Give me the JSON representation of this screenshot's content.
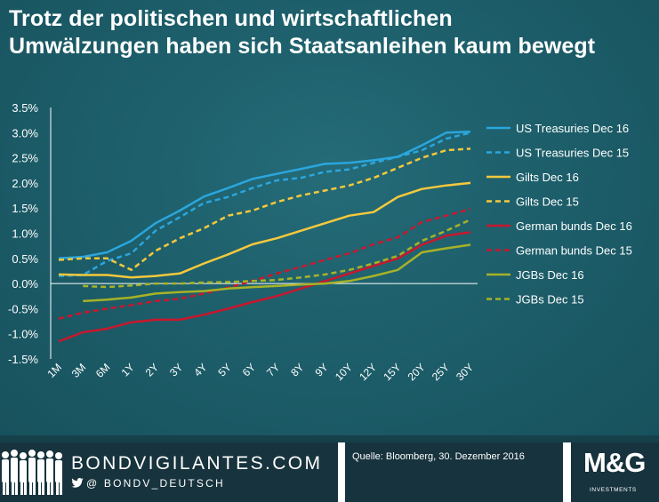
{
  "title_line1": "Trotz der politischen und wirtschaftlichen",
  "title_line2": "Umwälzungen haben sich Staatsanleihen kaum bewegt",
  "chart_data": {
    "type": "line",
    "title": "Trotz der politischen und wirtschaftlichen Umwälzungen haben sich Staatsanleihen kaum bewegt",
    "xlabel": "",
    "ylabel": "",
    "ylim": [
      -1.5,
      3.5
    ],
    "yticks": [
      "3.5%",
      "3.0%",
      "2.5%",
      "2.0%",
      "1.5%",
      "1.0%",
      "0.5%",
      "0.0%",
      "-0.5%",
      "-1.0%",
      "-1.5%"
    ],
    "ytick_values": [
      3.5,
      3.0,
      2.5,
      2.0,
      1.5,
      1.0,
      0.5,
      0.0,
      -0.5,
      -1.0,
      -1.5
    ],
    "categories": [
      "1M",
      "3M",
      "6M",
      "1Y",
      "2Y",
      "3Y",
      "4Y",
      "5Y",
      "6Y",
      "7Y",
      "8Y",
      "9Y",
      "10Y",
      "12Y",
      "15Y",
      "20Y",
      "25Y",
      "30Y"
    ],
    "legend_position": "right",
    "series": [
      {
        "name": "US Treasuries Dec 16",
        "color": "#2aa6de",
        "style": "solid",
        "values": [
          0.5,
          0.53,
          0.62,
          0.85,
          1.2,
          1.45,
          1.73,
          1.9,
          2.08,
          2.18,
          2.28,
          2.38,
          2.4,
          2.45,
          2.52,
          2.75,
          3.0,
          3.02
        ]
      },
      {
        "name": "US Treasuries Dec 15",
        "color": "#2aa6de",
        "style": "dashed",
        "values": [
          0.15,
          0.17,
          0.45,
          0.6,
          1.05,
          1.32,
          1.6,
          1.72,
          1.9,
          2.05,
          2.1,
          2.22,
          2.27,
          2.4,
          2.52,
          2.65,
          2.88,
          3.0
        ]
      },
      {
        "name": "Gilts Dec 16",
        "color": "#f5c83c",
        "style": "solid",
        "values": [
          0.18,
          0.17,
          0.17,
          0.12,
          0.15,
          0.2,
          0.4,
          0.58,
          0.78,
          0.9,
          1.05,
          1.2,
          1.35,
          1.42,
          1.72,
          1.88,
          1.95,
          2.0
        ]
      },
      {
        "name": "Gilts Dec 15",
        "color": "#f5c83c",
        "style": "dashed",
        "values": [
          0.47,
          0.5,
          0.5,
          0.27,
          0.65,
          0.9,
          1.1,
          1.35,
          1.45,
          1.62,
          1.75,
          1.85,
          1.95,
          2.1,
          2.3,
          2.5,
          2.65,
          2.68
        ]
      },
      {
        "name": "German bunds Dec 16",
        "color": "#c9172e",
        "style": "solid",
        "values": [
          -1.15,
          -0.97,
          -0.9,
          -0.77,
          -0.72,
          -0.72,
          -0.62,
          -0.5,
          -0.37,
          -0.25,
          -0.1,
          0.05,
          0.2,
          0.35,
          0.5,
          0.77,
          0.95,
          1.02
        ]
      },
      {
        "name": "German bunds Dec 15",
        "color": "#c9172e",
        "style": "dashed",
        "values": [
          -0.7,
          -0.58,
          -0.5,
          -0.43,
          -0.35,
          -0.3,
          -0.2,
          -0.08,
          0.05,
          0.2,
          0.33,
          0.47,
          0.6,
          0.78,
          0.92,
          1.22,
          1.35,
          1.48
        ]
      },
      {
        "name": "JGBs Dec 16",
        "color": "#a7b227",
        "style": "solid",
        "values": [
          null,
          -0.35,
          -0.32,
          -0.28,
          -0.2,
          -0.17,
          -0.15,
          -0.1,
          -0.07,
          -0.05,
          -0.02,
          0.0,
          0.05,
          0.15,
          0.27,
          0.62,
          0.7,
          0.77
        ]
      },
      {
        "name": "JGBs Dec 15",
        "color": "#a7b227",
        "style": "dashed",
        "values": [
          null,
          -0.05,
          -0.07,
          -0.04,
          0.0,
          0.0,
          0.02,
          0.03,
          0.05,
          0.07,
          0.12,
          0.18,
          0.27,
          0.4,
          0.55,
          0.85,
          1.05,
          1.27
        ]
      }
    ]
  },
  "footer": {
    "brand": "BONDVIGILANTES.COM",
    "twitter": "@ BONDV_DEUTSCH",
    "source": "Quelle: Bloomberg, 30. Dezember 2016",
    "logo": "M&G",
    "logo_sub": "INVESTMENTS"
  },
  "colors": {
    "background": "#1b5a66",
    "footer_dark": "#17333d"
  }
}
